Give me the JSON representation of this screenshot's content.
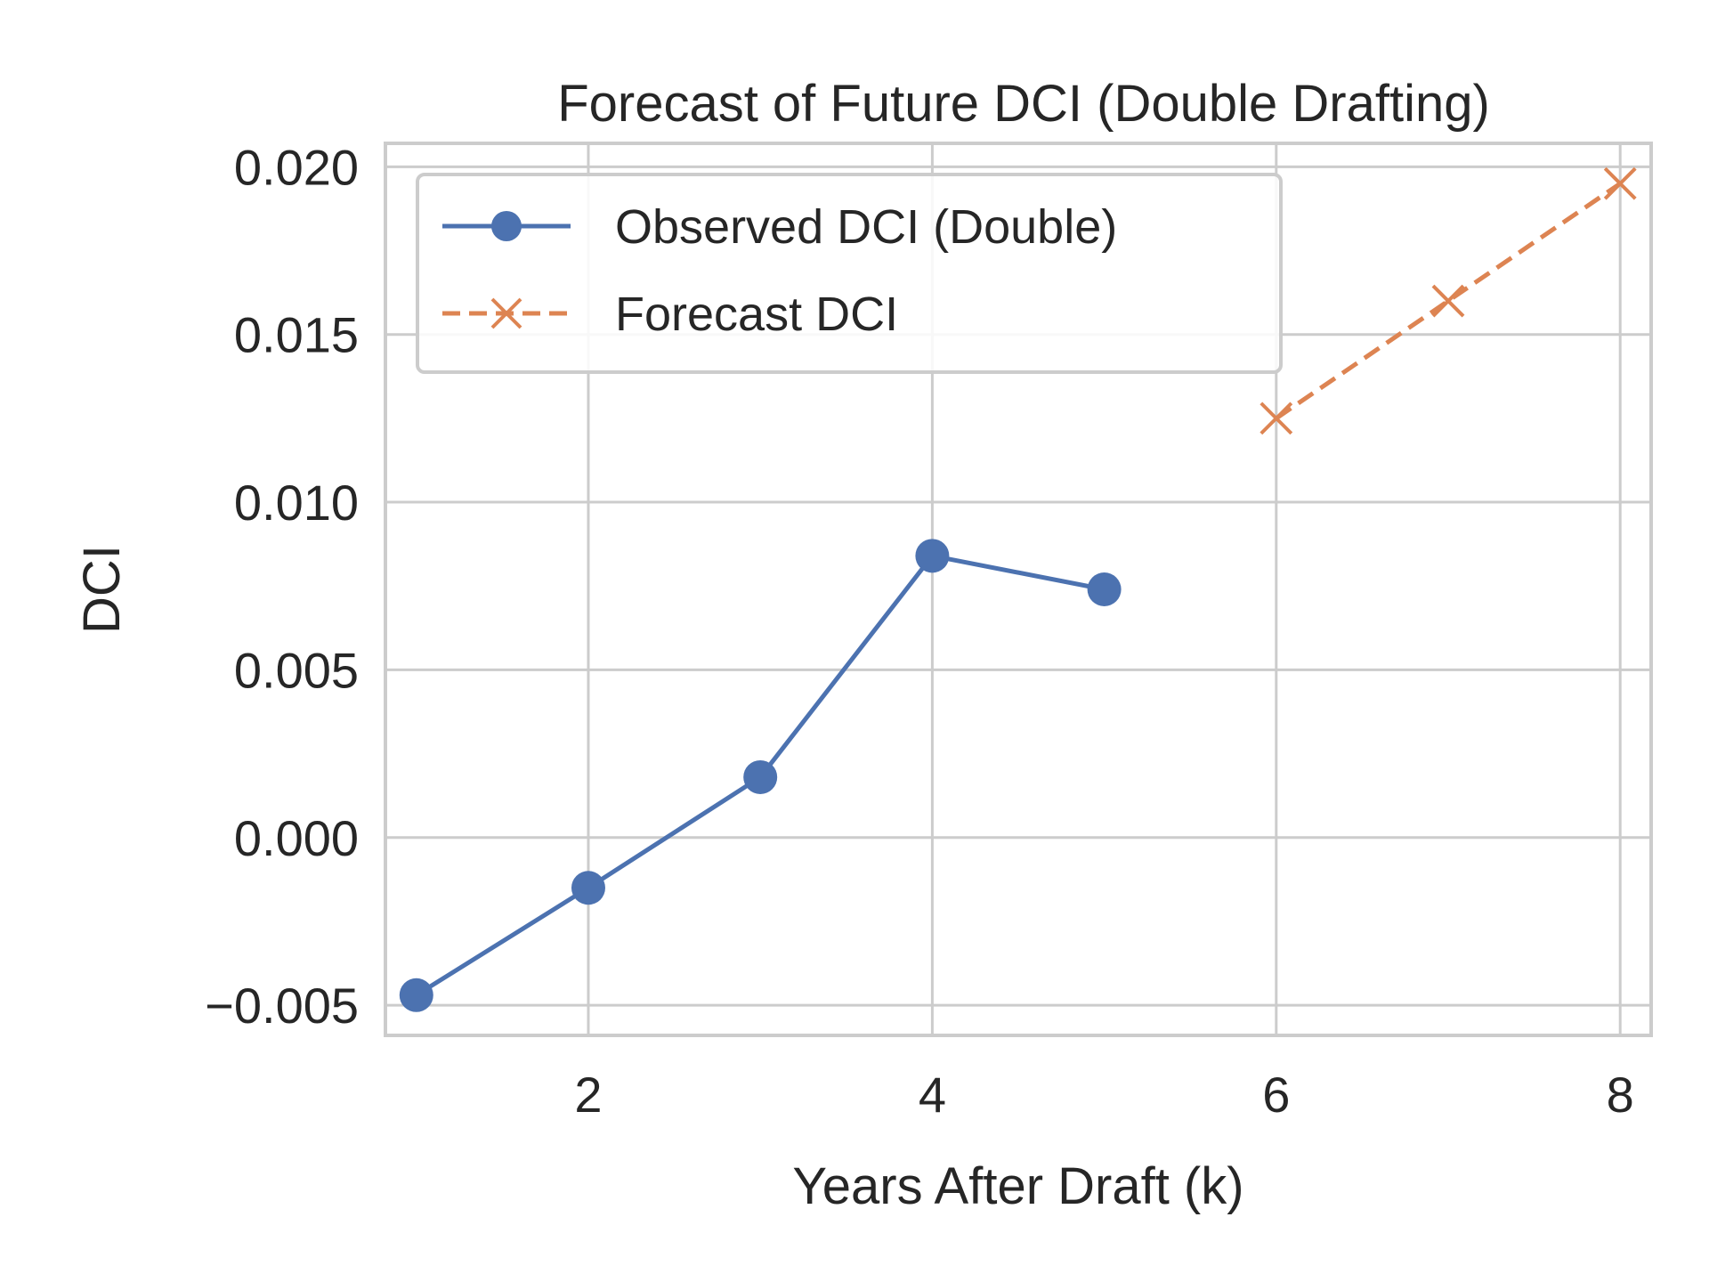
{
  "chart_data": {
    "type": "line",
    "title": "Forecast of Future DCI (Double Drafting)",
    "xlabel": "Years After Draft (k)",
    "ylabel": "DCI",
    "xlim": [
      0.82,
      8.18
    ],
    "ylim": [
      -0.0059,
      0.0207
    ],
    "x_ticks": [
      2,
      4,
      6,
      8
    ],
    "x_tick_labels": [
      "2",
      "4",
      "6",
      "8"
    ],
    "y_ticks": [
      -0.005,
      0.0,
      0.005,
      0.01,
      0.015,
      0.02
    ],
    "y_tick_labels": [
      "−0.005",
      "0.000",
      "0.005",
      "0.010",
      "0.015",
      "0.020"
    ],
    "grid": true,
    "legend_position": "top-left",
    "series": [
      {
        "name": "Observed DCI (Double)",
        "color": "#4c72b0",
        "line_style": "solid",
        "marker": "circle",
        "x": [
          1,
          2,
          3,
          4,
          5
        ],
        "y": [
          -0.0047,
          -0.0015,
          0.0018,
          0.0084,
          0.0074
        ]
      },
      {
        "name": "Forecast DCI",
        "color": "#dd8452",
        "line_style": "dashed",
        "marker": "x",
        "x": [
          6,
          7,
          8
        ],
        "y": [
          0.0125,
          0.016,
          0.0195
        ]
      }
    ]
  }
}
